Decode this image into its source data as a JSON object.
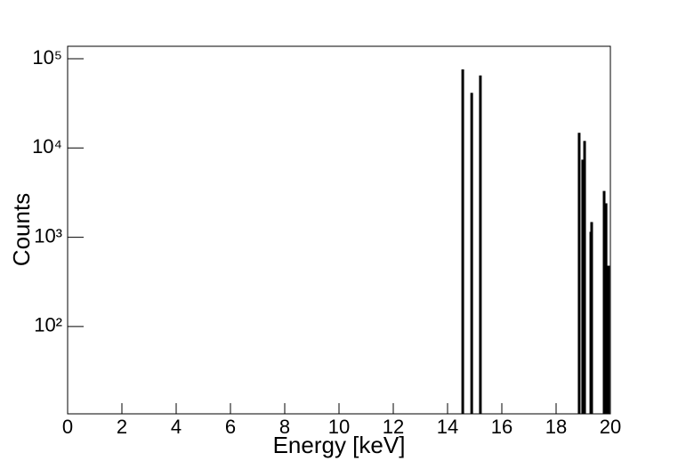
{
  "chart_data": {
    "type": "bar",
    "x_label": "Energy [keV]",
    "y_label": "Counts",
    "x": [
      14.56,
      14.89,
      15.21,
      18.85,
      18.98,
      19.05,
      19.28,
      19.31,
      19.77,
      19.84,
      19.93
    ],
    "values": [
      76000,
      41500,
      65000,
      14800,
      7400,
      12000,
      1150,
      1480,
      3300,
      2400,
      480
    ],
    "color": "#000000",
    "xlim": [
      0,
      20
    ],
    "xticks": [
      0,
      2,
      4,
      6,
      8,
      10,
      12,
      14,
      16,
      18,
      20
    ],
    "ylim": [
      10.5,
      138000
    ],
    "log_y": true,
    "yticks": [
      {
        "value": 100,
        "label": "10²"
      },
      {
        "value": 1000,
        "label": "10³"
      },
      {
        "value": 10000,
        "label": "10⁴"
      },
      {
        "value": 100000,
        "label": "10⁵"
      }
    ],
    "grid": false
  }
}
